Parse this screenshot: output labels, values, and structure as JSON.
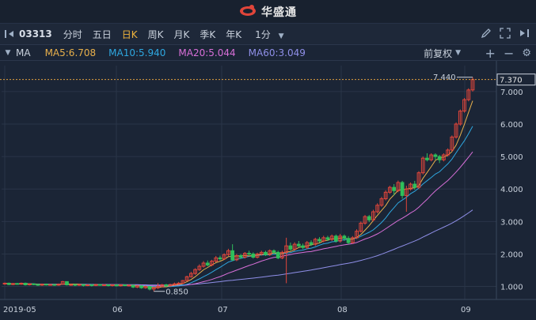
{
  "app": {
    "name": "华盛通"
  },
  "toolbar": {
    "stock_code": "03313",
    "periods": [
      "分时",
      "五日",
      "日K",
      "周K",
      "月K",
      "季K",
      "年K"
    ],
    "active_period": "日K",
    "interval": "1分"
  },
  "ma_bar": {
    "label": "MA",
    "ma5": "MA5:6.708",
    "ma10": "MA10:5.940",
    "ma20": "MA20:5.044",
    "ma60": "MA60:3.049",
    "adjust": "前复权"
  },
  "colors": {
    "up": "#e0453a",
    "down": "#2fbf5b",
    "ma5": "#e8b04b",
    "ma10": "#2ea7e0",
    "ma20": "#d86fd8",
    "ma60": "#8f8fe8",
    "background": "#1b2536",
    "grid": "#2a3548"
  },
  "chart_data": {
    "type": "candlestick",
    "y_ticks": [
      "1.000",
      "2.000",
      "3.000",
      "4.000",
      "5.000",
      "6.000",
      "7.000"
    ],
    "ylim": [
      0.6,
      7.8
    ],
    "x_tick_labels": [
      "2019-05",
      "06",
      "07",
      "08",
      "09"
    ],
    "current_price": "7.370",
    "high_label": "7.440",
    "low_label": "0.850",
    "candles": [
      [
        1.08,
        1.1,
        1.05,
        1.12
      ],
      [
        1.1,
        1.06,
        1.04,
        1.12
      ],
      [
        1.06,
        1.09,
        1.04,
        1.11
      ],
      [
        1.09,
        1.07,
        1.05,
        1.11
      ],
      [
        1.07,
        1.1,
        1.05,
        1.12
      ],
      [
        1.1,
        1.05,
        1.03,
        1.12
      ],
      [
        1.05,
        1.08,
        1.03,
        1.1
      ],
      [
        1.08,
        1.06,
        1.04,
        1.1
      ],
      [
        1.06,
        1.04,
        1.02,
        1.08
      ],
      [
        1.04,
        1.07,
        1.02,
        1.09
      ],
      [
        1.07,
        1.05,
        1.03,
        1.09
      ],
      [
        1.05,
        1.06,
        1.03,
        1.08
      ],
      [
        1.06,
        1.04,
        1.02,
        1.08
      ],
      [
        1.04,
        1.07,
        1.02,
        1.09
      ],
      [
        1.07,
        1.15,
        1.05,
        1.17
      ],
      [
        1.15,
        1.05,
        1.03,
        1.16
      ],
      [
        1.05,
        1.06,
        1.02,
        1.08
      ],
      [
        1.06,
        1.04,
        1.01,
        1.08
      ],
      [
        1.04,
        1.06,
        1.02,
        1.08
      ],
      [
        1.06,
        1.03,
        1.0,
        1.07
      ],
      [
        1.03,
        1.05,
        1.01,
        1.07
      ],
      [
        1.05,
        1.03,
        1.0,
        1.07
      ],
      [
        1.03,
        1.06,
        1.01,
        1.08
      ],
      [
        1.06,
        1.04,
        1.02,
        1.08
      ],
      [
        1.04,
        1.05,
        1.02,
        1.07
      ],
      [
        1.05,
        1.03,
        1.0,
        1.07
      ],
      [
        1.03,
        1.05,
        1.0,
        1.06
      ],
      [
        1.05,
        1.02,
        1.0,
        1.06
      ],
      [
        1.02,
        1.05,
        1.0,
        1.07
      ],
      [
        1.05,
        1.03,
        1.01,
        1.06
      ],
      [
        1.03,
        1.04,
        1.0,
        1.06
      ],
      [
        1.04,
        0.98,
        0.95,
        1.05
      ],
      [
        0.98,
        1.02,
        0.95,
        1.04
      ],
      [
        1.02,
        0.96,
        0.93,
        1.04
      ],
      [
        0.96,
        1.0,
        0.93,
        1.03
      ],
      [
        1.0,
        0.92,
        0.88,
        1.02
      ],
      [
        0.92,
        0.96,
        0.85,
        1.0
      ],
      [
        0.96,
        1.0,
        0.92,
        1.1
      ],
      [
        1.0,
        1.05,
        0.98,
        1.08
      ],
      [
        1.05,
        1.02,
        0.99,
        1.08
      ],
      [
        1.02,
        1.06,
        1.0,
        1.08
      ],
      [
        1.06,
        1.08,
        1.03,
        1.12
      ],
      [
        1.08,
        1.1,
        1.05,
        1.14
      ],
      [
        1.1,
        1.18,
        1.08,
        1.2
      ],
      [
        1.18,
        1.3,
        1.16,
        1.33
      ],
      [
        1.3,
        1.4,
        1.27,
        1.45
      ],
      [
        1.4,
        1.52,
        1.36,
        1.56
      ],
      [
        1.52,
        1.62,
        1.48,
        1.68
      ],
      [
        1.62,
        1.72,
        1.58,
        1.78
      ],
      [
        1.72,
        1.66,
        1.62,
        1.8
      ],
      [
        1.66,
        1.78,
        1.62,
        1.82
      ],
      [
        1.78,
        1.88,
        1.74,
        1.94
      ],
      [
        1.88,
        1.85,
        1.8,
        1.95
      ],
      [
        1.85,
        1.98,
        1.82,
        2.02
      ],
      [
        1.98,
        2.1,
        1.94,
        2.16
      ],
      [
        2.1,
        1.82,
        1.78,
        2.3
      ],
      [
        1.82,
        1.95,
        1.78,
        2.0
      ],
      [
        1.95,
        1.9,
        1.85,
        2.0
      ],
      [
        1.9,
        2.02,
        1.86,
        2.06
      ],
      [
        2.02,
        2.0,
        1.96,
        2.1
      ],
      [
        2.0,
        1.9,
        1.86,
        2.05
      ],
      [
        1.9,
        2.0,
        1.86,
        2.04
      ],
      [
        2.0,
        2.05,
        1.95,
        2.1
      ],
      [
        2.05,
        1.98,
        1.94,
        2.1
      ],
      [
        1.98,
        2.1,
        1.94,
        2.14
      ],
      [
        2.1,
        2.05,
        2.0,
        2.14
      ],
      [
        2.05,
        1.88,
        1.84,
        2.1
      ],
      [
        1.88,
        2.05,
        1.84,
        2.1
      ],
      [
        2.05,
        2.25,
        1.1,
        2.5
      ],
      [
        2.25,
        2.15,
        2.1,
        2.35
      ],
      [
        2.15,
        2.3,
        2.1,
        2.36
      ],
      [
        2.3,
        2.25,
        2.2,
        2.4
      ],
      [
        2.25,
        2.2,
        2.15,
        2.32
      ],
      [
        2.2,
        2.35,
        2.15,
        2.4
      ],
      [
        2.35,
        2.3,
        2.25,
        2.42
      ],
      [
        2.3,
        2.45,
        2.25,
        2.5
      ],
      [
        2.45,
        2.4,
        2.35,
        2.52
      ],
      [
        2.4,
        2.5,
        2.36,
        2.56
      ],
      [
        2.5,
        2.45,
        2.4,
        2.56
      ],
      [
        2.45,
        2.55,
        2.4,
        2.6
      ],
      [
        2.55,
        2.4,
        2.35,
        2.6
      ],
      [
        2.4,
        2.55,
        2.35,
        2.62
      ],
      [
        2.55,
        2.48,
        2.4,
        2.6
      ],
      [
        2.48,
        2.35,
        2.3,
        2.55
      ],
      [
        2.35,
        2.5,
        2.32,
        2.55
      ],
      [
        2.5,
        2.7,
        2.46,
        2.76
      ],
      [
        2.7,
        2.95,
        2.66,
        3.0
      ],
      [
        2.95,
        3.15,
        2.9,
        3.2
      ],
      [
        3.15,
        3.05,
        2.98,
        3.2
      ],
      [
        3.05,
        3.3,
        3.0,
        3.36
      ],
      [
        3.3,
        3.5,
        3.25,
        3.56
      ],
      [
        3.5,
        3.7,
        3.45,
        3.76
      ],
      [
        3.7,
        3.9,
        3.65,
        3.96
      ],
      [
        3.9,
        4.05,
        3.85,
        4.1
      ],
      [
        4.05,
        3.95,
        3.8,
        4.15
      ],
      [
        3.95,
        4.2,
        3.9,
        4.26
      ],
      [
        4.2,
        3.8,
        3.7,
        4.25
      ],
      [
        3.8,
        4.0,
        3.3,
        4.1
      ],
      [
        4.0,
        4.15,
        3.95,
        4.2
      ],
      [
        4.15,
        4.05,
        3.98,
        4.25
      ],
      [
        4.05,
        4.5,
        4.0,
        4.55
      ],
      [
        4.5,
        4.95,
        4.45,
        5.0
      ],
      [
        4.95,
        4.9,
        4.85,
        5.1
      ],
      [
        4.9,
        5.05,
        4.85,
        5.1
      ],
      [
        5.05,
        5.0,
        4.9,
        5.1
      ],
      [
        5.0,
        4.9,
        4.8,
        5.05
      ],
      [
        4.9,
        5.05,
        4.85,
        5.1
      ],
      [
        5.05,
        5.2,
        5.0,
        5.25
      ],
      [
        5.2,
        5.6,
        5.15,
        5.65
      ],
      [
        5.6,
        6.0,
        5.55,
        6.05
      ],
      [
        6.0,
        6.4,
        5.95,
        6.45
      ],
      [
        6.4,
        6.75,
        6.35,
        6.8
      ],
      [
        6.75,
        7.05,
        6.7,
        7.1
      ],
      [
        7.05,
        7.37,
        7.0,
        7.44
      ]
    ]
  }
}
